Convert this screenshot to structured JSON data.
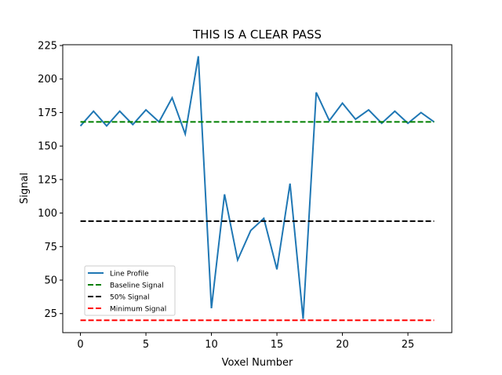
{
  "chart_data": {
    "type": "line",
    "title": "THIS IS A CLEAR PASS",
    "xlabel": "Voxel Number",
    "ylabel": "Signal",
    "xlim": [
      -1.35,
      28.35
    ],
    "ylim": [
      10.8,
      225.6
    ],
    "xticks": [
      0,
      5,
      10,
      15,
      20,
      25
    ],
    "yticks": [
      25,
      50,
      75,
      100,
      125,
      150,
      175,
      200,
      225
    ],
    "grid": false,
    "legend_position": "lower-left",
    "series": [
      {
        "name": "Line Profile",
        "style": "solid",
        "color": "#1f77b4",
        "x": [
          0,
          1,
          2,
          3,
          4,
          5,
          6,
          7,
          8,
          9,
          10,
          11,
          12,
          13,
          14,
          15,
          16,
          17,
          18,
          19,
          20,
          21,
          22,
          23,
          24,
          25,
          26,
          27
        ],
        "y": [
          165,
          176,
          165,
          176,
          166,
          177,
          168,
          186,
          159,
          217,
          29,
          114,
          65,
          87,
          96,
          58,
          122,
          21,
          190,
          169,
          182,
          170,
          177,
          167,
          176,
          167,
          175,
          168
        ]
      },
      {
        "name": "Baseline Signal",
        "style": "dashed",
        "color": "#008000",
        "x": [
          0,
          27
        ],
        "y": [
          168,
          168
        ]
      },
      {
        "name": "50% Signal",
        "style": "dashed",
        "color": "#000000",
        "x": [
          0,
          27
        ],
        "y": [
          94,
          94
        ]
      },
      {
        "name": "Minimum Signal",
        "style": "dashed",
        "color": "#ff0000",
        "x": [
          0,
          27
        ],
        "y": [
          20,
          20
        ]
      }
    ]
  }
}
